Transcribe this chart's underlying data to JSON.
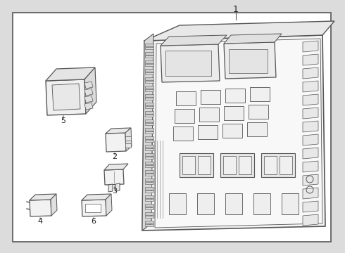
{
  "bg_color": "#dcdcdc",
  "white_bg": "#ffffff",
  "border_color": "#555555",
  "line_color": "#555555",
  "text_color": "#222222",
  "hatch_color": "#888888",
  "figsize": [
    4.9,
    3.6
  ],
  "dpi": 100,
  "label_1": "1",
  "label_2": "2",
  "label_3": "3",
  "label_4": "4",
  "label_5": "5",
  "label_6": "6"
}
